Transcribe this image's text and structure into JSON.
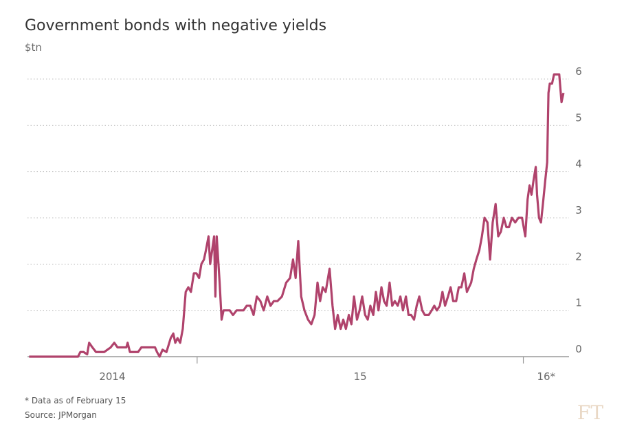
{
  "chart_data": {
    "type": "line",
    "title": "Government bonds with negative yields",
    "subtitle": "$tn",
    "footnote": "* Data as of February 15",
    "source": "Source: JPMorgan",
    "logo": "FT",
    "color": "#b0436c",
    "grid": true,
    "y_axis_side": "right",
    "xlim": [
      2014.48,
      2016.14
    ],
    "xticks": [
      {
        "value": 2014,
        "label": "2014"
      },
      {
        "value": 2015,
        "label": "15"
      },
      {
        "value": 2016,
        "label": "16*"
      }
    ],
    "ylim": [
      0,
      6
    ],
    "yticks": [
      0,
      1,
      2,
      3,
      4,
      5,
      6
    ],
    "x": [
      2014.485,
      2014.635,
      2014.642,
      2014.652,
      2014.663,
      2014.669,
      2014.679,
      2014.69,
      2014.715,
      2014.735,
      2014.746,
      2014.756,
      2014.783,
      2014.787,
      2014.794,
      2014.819,
      2014.829,
      2014.85,
      2014.871,
      2014.877,
      2014.885,
      2014.894,
      2014.906,
      2014.919,
      2014.927,
      2014.933,
      2014.94,
      2014.948,
      2014.956,
      2014.965,
      2014.973,
      2014.981,
      2014.99,
      2014.998,
      2015.006,
      2015.013,
      2015.021,
      2015.027,
      2015.035,
      2015.04,
      2015.046,
      2015.052,
      2015.056,
      2015.06,
      2015.069,
      2015.075,
      2015.081,
      2015.1,
      2015.11,
      2015.121,
      2015.142,
      2015.152,
      2015.163,
      2015.173,
      2015.183,
      2015.194,
      2015.204,
      2015.215,
      2015.225,
      2015.235,
      2015.246,
      2015.26,
      2015.273,
      2015.285,
      2015.294,
      2015.302,
      2015.31,
      2015.319,
      2015.329,
      2015.34,
      2015.35,
      2015.36,
      2015.369,
      2015.377,
      2015.385,
      2015.394,
      2015.406,
      2015.415,
      2015.423,
      2015.431,
      2015.44,
      2015.448,
      2015.456,
      2015.465,
      2015.473,
      2015.481,
      2015.49,
      2015.498,
      2015.506,
      2015.515,
      2015.523,
      2015.531,
      2015.54,
      2015.548,
      2015.556,
      2015.565,
      2015.573,
      2015.581,
      2015.59,
      2015.598,
      2015.606,
      2015.615,
      2015.623,
      2015.631,
      2015.64,
      2015.648,
      2015.656,
      2015.665,
      2015.673,
      2015.681,
      2015.69,
      2015.698,
      2015.71,
      2015.719,
      2015.727,
      2015.735,
      2015.744,
      2015.752,
      2015.76,
      2015.769,
      2015.777,
      2015.785,
      2015.794,
      2015.802,
      2015.81,
      2015.819,
      2015.827,
      2015.84,
      2015.848,
      2015.856,
      2015.865,
      2015.873,
      2015.881,
      2015.89,
      2015.898,
      2015.906,
      2015.915,
      2015.923,
      2015.931,
      2015.94,
      2015.948,
      2015.956,
      2015.965,
      2015.975,
      2015.985,
      2015.996,
      2016.006,
      2016.013,
      2016.019,
      2016.025,
      2016.031,
      2016.038,
      2016.042,
      2016.048,
      2016.054,
      2016.06,
      2016.067,
      2016.073,
      2016.077,
      2016.081,
      2016.088,
      2016.094,
      2016.102,
      2016.11,
      2016.117,
      2016.123
    ],
    "values": [
      0,
      0,
      0.1,
      0.1,
      0.05,
      0.3,
      0.2,
      0.1,
      0.1,
      0.2,
      0.3,
      0.2,
      0.2,
      0.3,
      0.1,
      0.1,
      0.2,
      0.2,
      0.2,
      0.1,
      0,
      0.15,
      0.1,
      0.4,
      0.5,
      0.3,
      0.4,
      0.3,
      0.6,
      1.4,
      1.5,
      1.4,
      1.8,
      1.8,
      1.7,
      2.0,
      2.1,
      2.3,
      2.6,
      2.0,
      2.3,
      2.6,
      1.3,
      2.6,
      1.6,
      0.8,
      1.0,
      1.0,
      0.9,
      1.0,
      1.0,
      1.1,
      1.1,
      0.9,
      1.3,
      1.2,
      1.0,
      1.3,
      1.1,
      1.2,
      1.2,
      1.3,
      1.6,
      1.7,
      2.1,
      1.7,
      2.5,
      1.3,
      1.0,
      0.8,
      0.7,
      0.9,
      1.6,
      1.2,
      1.5,
      1.4,
      1.9,
      1.1,
      0.6,
      0.9,
      0.6,
      0.8,
      0.6,
      0.9,
      0.7,
      1.3,
      0.8,
      1.0,
      1.3,
      0.9,
      0.8,
      1.1,
      0.9,
      1.4,
      1.0,
      1.5,
      1.2,
      1.1,
      1.6,
      1.1,
      1.2,
      1.1,
      1.3,
      1.0,
      1.3,
      0.9,
      0.9,
      0.8,
      1.1,
      1.3,
      1.0,
      0.9,
      0.9,
      1.0,
      1.1,
      1.0,
      1.1,
      1.4,
      1.1,
      1.3,
      1.5,
      1.2,
      1.2,
      1.5,
      1.5,
      1.8,
      1.4,
      1.6,
      1.9,
      2.1,
      2.3,
      2.6,
      3.0,
      2.9,
      2.1,
      2.9,
      3.3,
      2.6,
      2.7,
      3.0,
      2.8,
      2.8,
      3.0,
      2.9,
      3.0,
      3.0,
      2.6,
      3.4,
      3.7,
      3.5,
      3.8,
      4.1,
      3.5,
      3.0,
      2.9,
      3.3,
      3.8,
      4.2,
      5.7,
      5.9,
      5.9,
      6.1,
      6.1,
      6.1,
      5.5,
      5.7
    ]
  }
}
